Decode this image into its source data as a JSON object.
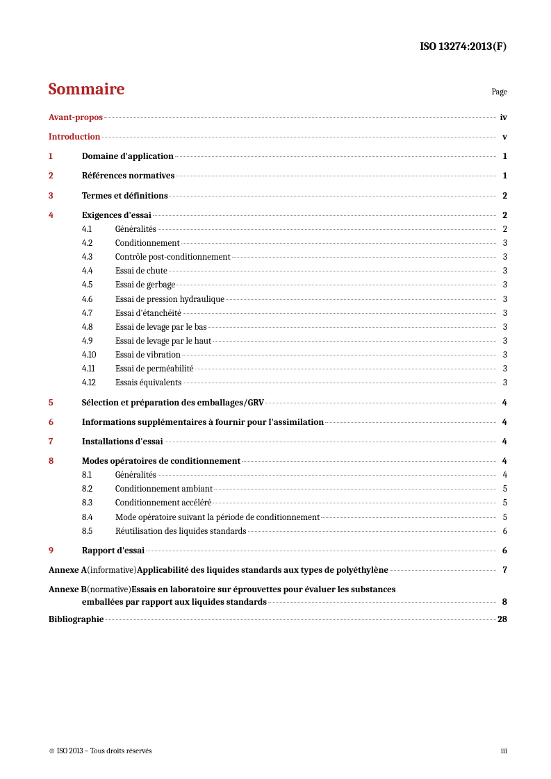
{
  "header": {
    "doc_id": "ISO 13274:2013(F)"
  },
  "title": {
    "heading": "Sommaire",
    "page_label": "Page"
  },
  "front": [
    {
      "label": "Avant-propos",
      "page": "iv"
    },
    {
      "label": "Introduction",
      "page": "v"
    }
  ],
  "sections": [
    {
      "num": "1",
      "label": "Domaine d'application",
      "page": "1",
      "subs": []
    },
    {
      "num": "2",
      "label": "Références normatives",
      "page": "1",
      "subs": []
    },
    {
      "num": "3",
      "label": "Termes et définitions",
      "page": "2",
      "subs": []
    },
    {
      "num": "4",
      "label": "Exigences d'essai",
      "page": "2",
      "subs": [
        {
          "num": "4.1",
          "label": "Généralités",
          "page": "2"
        },
        {
          "num": "4.2",
          "label": "Conditionnement",
          "page": "3"
        },
        {
          "num": "4.3",
          "label": "Contrôle post-conditionnement",
          "page": "3"
        },
        {
          "num": "4.4",
          "label": "Essai de chute",
          "page": "3"
        },
        {
          "num": "4.5",
          "label": "Essai de gerbage",
          "page": "3"
        },
        {
          "num": "4.6",
          "label": "Essai de pression hydraulique",
          "page": "3"
        },
        {
          "num": "4.7",
          "label": "Essai d'étanchéité",
          "page": "3"
        },
        {
          "num": "4.8",
          "label": "Essai de levage par le bas",
          "page": "3"
        },
        {
          "num": "4.9",
          "label": "Essai de levage par le haut",
          "page": "3"
        },
        {
          "num": "4.10",
          "label": "Essai de vibration",
          "page": "3"
        },
        {
          "num": "4.11",
          "label": "Essai de perméabilité",
          "page": "3"
        },
        {
          "num": "4.12",
          "label": "Essais équivalents",
          "page": "3"
        }
      ]
    },
    {
      "num": "5",
      "label": "Sélection et préparation des emballages/GRV",
      "page": "4",
      "subs": []
    },
    {
      "num": "6",
      "label": "Informations supplémentaires à fournir pour l'assimilation",
      "page": "4",
      "subs": []
    },
    {
      "num": "7",
      "label": "Installations d'essai",
      "page": "4",
      "subs": []
    },
    {
      "num": "8",
      "label": "Modes opératoires de conditionnement",
      "page": "4",
      "subs": [
        {
          "num": "8.1",
          "label": "Généralités",
          "page": "4"
        },
        {
          "num": "8.2",
          "label": "Conditionnement ambiant",
          "page": "5"
        },
        {
          "num": "8.3",
          "label": "Conditionnement accéléré",
          "page": "5"
        },
        {
          "num": "8.4",
          "label": "Mode opératoire suivant la période de conditionnement",
          "page": "5"
        },
        {
          "num": "8.5",
          "label": "Réutilisation des liquides standards",
          "page": "6"
        }
      ]
    },
    {
      "num": "9",
      "label": "Rapport d'essai",
      "page": "6",
      "subs": []
    }
  ],
  "annexes": {
    "a": {
      "prefix": "Annexe A",
      "paren": " (informative) ",
      "title": "Applicabilité des liquides standards aux types de polyéthylène",
      "page": "7"
    },
    "b": {
      "prefix": "Annexe B",
      "paren": " (normative) ",
      "title_line1": "Essais en laboratoire sur éprouvettes pour évaluer les substances",
      "title_line2": "emballées par rapport aux liquides standards",
      "page": "8"
    }
  },
  "biblio": {
    "label": "Bibliographie",
    "page": "28"
  },
  "footer": {
    "copyright": "© ISO 2013 – Tous droits réservés",
    "pagenum": "iii"
  },
  "colors": {
    "accent": "#b02224",
    "text": "#000000",
    "bg": "#ffffff"
  }
}
